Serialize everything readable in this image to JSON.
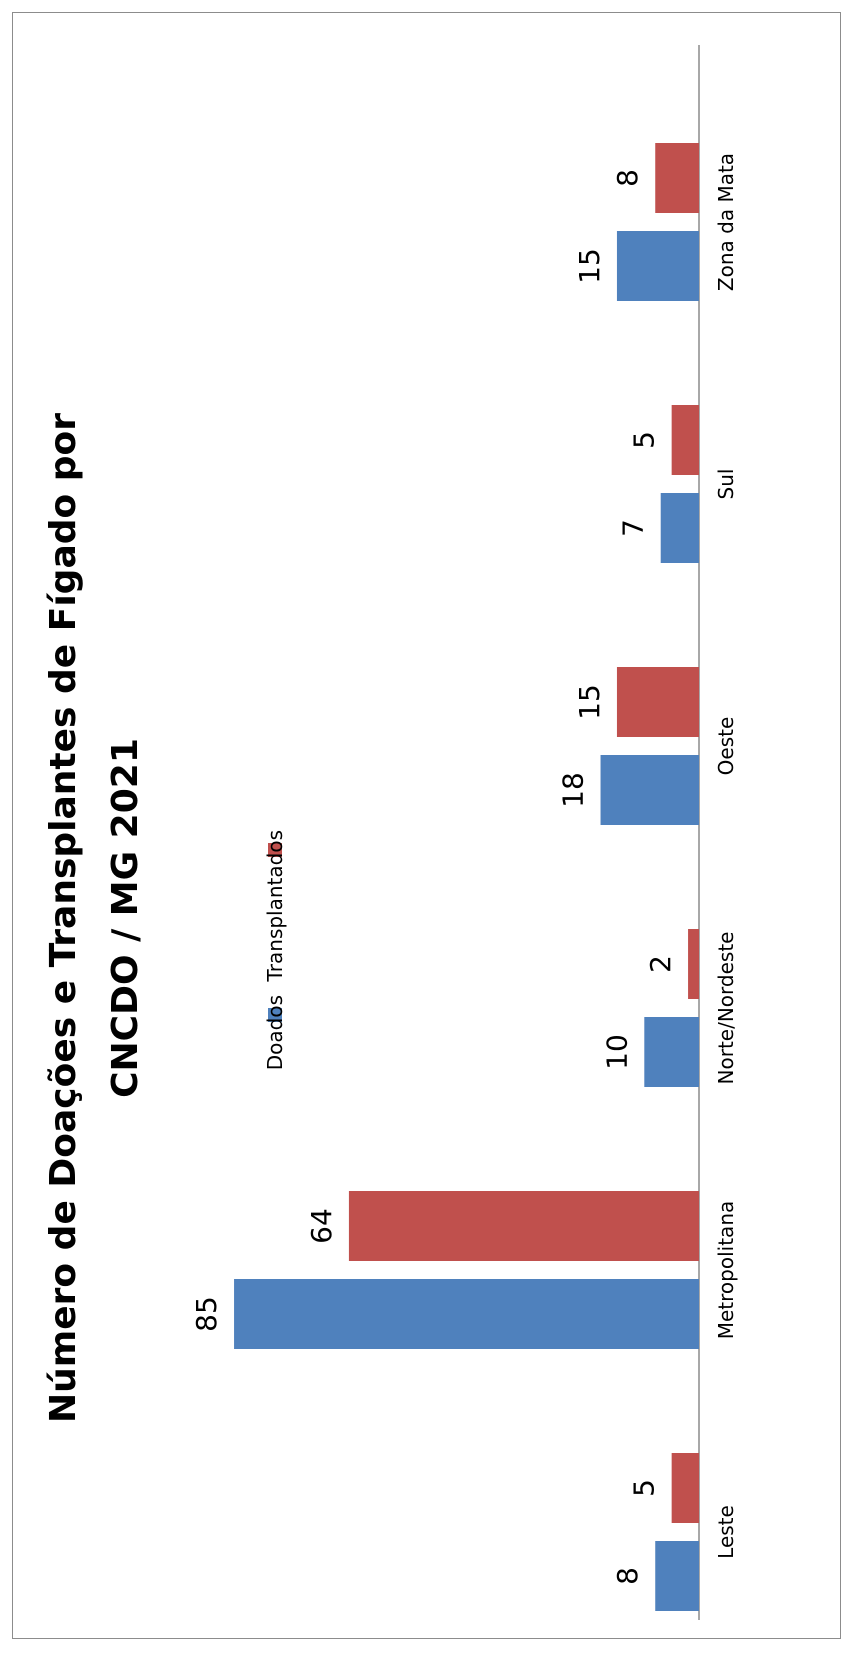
{
  "chart_data": {
    "type": "bar",
    "orientation": "rotated-90-ccw",
    "title_line1": "Número de Doações e Transplantes de Fígado por",
    "title_line2": "CNCDO / MG 2021",
    "categories": [
      "Leste",
      "Metropolitana",
      "Norte/Nordeste",
      "Oeste",
      "Sul",
      "Zona da Mata"
    ],
    "series": [
      {
        "name": "Doados",
        "color": "#4f81bd",
        "values": [
          8,
          85,
          10,
          18,
          7,
          15
        ]
      },
      {
        "name": "Transplantados",
        "color": "#c0504d",
        "values": [
          5,
          64,
          2,
          15,
          5,
          8
        ]
      }
    ],
    "ylim": [
      0,
      90
    ],
    "grid": false,
    "legend": "top"
  }
}
